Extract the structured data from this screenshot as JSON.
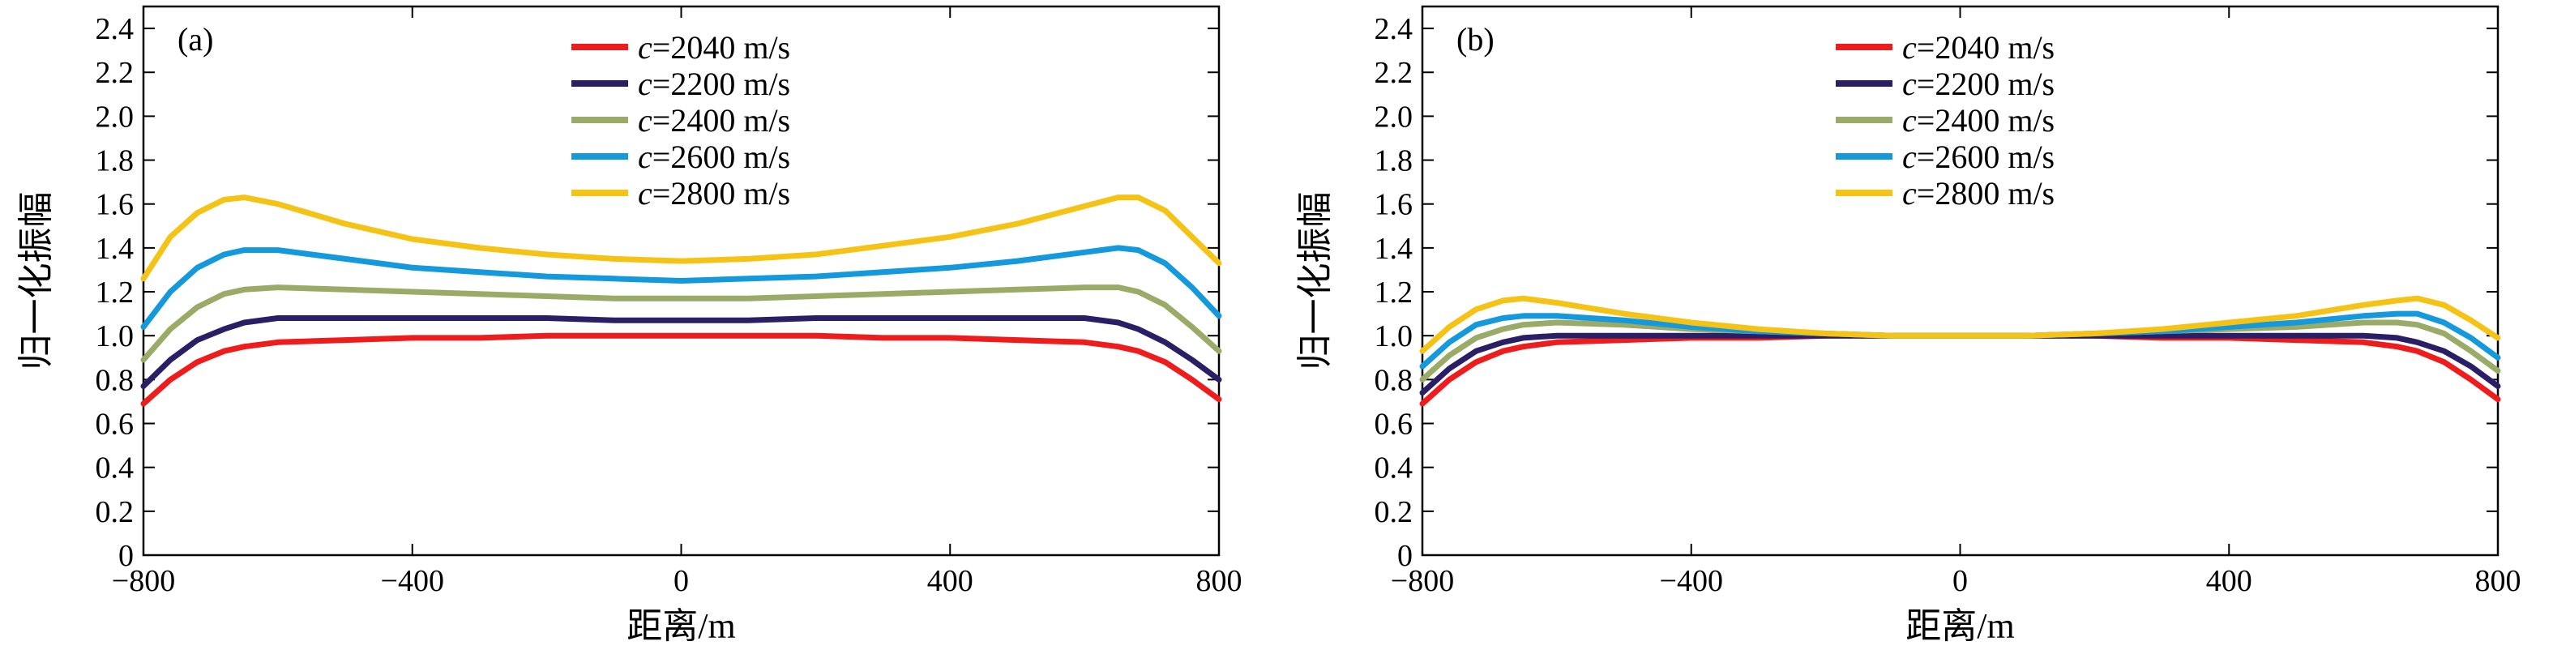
{
  "chart_data": [
    {
      "type": "line",
      "panel_label": "(a)",
      "xlabel": "距离/m",
      "ylabel": "归一化振幅",
      "xlim": [
        -800,
        800
      ],
      "ylim": [
        0,
        2.5
      ],
      "xticks": [
        "−800",
        "−400",
        "0",
        "400",
        "800"
      ],
      "yticks": [
        "0",
        "0.2",
        "0.4",
        "0.6",
        "0.8",
        "1.0",
        "1.2",
        "1.4",
        "1.6",
        "1.8",
        "2.0",
        "2.2",
        "2.4"
      ],
      "legend_position": "top-center",
      "grid": false,
      "x": [
        -800,
        -760,
        -720,
        -680,
        -650,
        -600,
        -500,
        -400,
        -300,
        -200,
        -100,
        0,
        100,
        200,
        300,
        400,
        500,
        600,
        650,
        680,
        720,
        760,
        800
      ],
      "series": [
        {
          "name_italic": "c",
          "name_rest": "=2040 m/s",
          "color": "#ee1c1c",
          "values": [
            0.69,
            0.8,
            0.88,
            0.93,
            0.95,
            0.97,
            0.98,
            0.99,
            0.99,
            1.0,
            1.0,
            1.0,
            1.0,
            1.0,
            0.99,
            0.99,
            0.98,
            0.97,
            0.95,
            0.93,
            0.88,
            0.8,
            0.71
          ]
        },
        {
          "name_italic": "c",
          "name_rest": "=2200 m/s",
          "color": "#2a1f66",
          "values": [
            0.77,
            0.89,
            0.98,
            1.03,
            1.06,
            1.08,
            1.08,
            1.08,
            1.08,
            1.08,
            1.07,
            1.07,
            1.07,
            1.08,
            1.08,
            1.08,
            1.08,
            1.08,
            1.06,
            1.03,
            0.97,
            0.89,
            0.8
          ]
        },
        {
          "name_italic": "c",
          "name_rest": "=2400 m/s",
          "color": "#9aab68",
          "values": [
            0.89,
            1.03,
            1.13,
            1.19,
            1.21,
            1.22,
            1.21,
            1.2,
            1.19,
            1.18,
            1.17,
            1.17,
            1.17,
            1.18,
            1.19,
            1.2,
            1.21,
            1.22,
            1.22,
            1.2,
            1.14,
            1.04,
            0.93
          ]
        },
        {
          "name_italic": "c",
          "name_rest": "=2600 m/s",
          "color": "#1499dc",
          "values": [
            1.04,
            1.2,
            1.31,
            1.37,
            1.39,
            1.39,
            1.35,
            1.31,
            1.29,
            1.27,
            1.26,
            1.25,
            1.26,
            1.27,
            1.29,
            1.31,
            1.34,
            1.38,
            1.4,
            1.39,
            1.33,
            1.22,
            1.09
          ]
        },
        {
          "name_italic": "c",
          "name_rest": "=2800 m/s",
          "color": "#f4c316",
          "values": [
            1.26,
            1.45,
            1.56,
            1.62,
            1.63,
            1.6,
            1.51,
            1.44,
            1.4,
            1.37,
            1.35,
            1.34,
            1.35,
            1.37,
            1.41,
            1.45,
            1.51,
            1.59,
            1.63,
            1.63,
            1.57,
            1.45,
            1.33
          ]
        }
      ]
    },
    {
      "type": "line",
      "panel_label": "(b)",
      "xlabel": "距离/m",
      "ylabel": "归一化振幅",
      "xlim": [
        -800,
        800
      ],
      "ylim": [
        0,
        2.5
      ],
      "xticks": [
        "−800",
        "−400",
        "0",
        "400",
        "800"
      ],
      "yticks": [
        "0",
        "0.2",
        "0.4",
        "0.6",
        "0.8",
        "1.0",
        "1.2",
        "1.4",
        "1.6",
        "1.8",
        "2.0",
        "2.2",
        "2.4"
      ],
      "legend_position": "top-center",
      "grid": false,
      "x": [
        -800,
        -760,
        -720,
        -680,
        -650,
        -600,
        -500,
        -400,
        -300,
        -200,
        -100,
        0,
        100,
        200,
        300,
        400,
        500,
        600,
        650,
        680,
        720,
        760,
        800
      ],
      "series": [
        {
          "name_italic": "c",
          "name_rest": "=2040 m/s",
          "color": "#ee1c1c",
          "values": [
            0.69,
            0.8,
            0.88,
            0.93,
            0.95,
            0.97,
            0.98,
            0.99,
            0.99,
            1.0,
            1.0,
            1.0,
            1.0,
            1.0,
            0.99,
            0.99,
            0.98,
            0.97,
            0.95,
            0.93,
            0.88,
            0.8,
            0.71
          ]
        },
        {
          "name_italic": "c",
          "name_rest": "=2200 m/s",
          "color": "#2a1f66",
          "values": [
            0.74,
            0.85,
            0.93,
            0.97,
            0.99,
            1.0,
            1.0,
            1.0,
            1.0,
            1.0,
            1.0,
            1.0,
            1.0,
            1.0,
            1.0,
            1.0,
            1.0,
            1.0,
            0.99,
            0.97,
            0.93,
            0.86,
            0.77
          ]
        },
        {
          "name_italic": "c",
          "name_rest": "=2400 m/s",
          "color": "#9aab68",
          "values": [
            0.8,
            0.91,
            0.99,
            1.03,
            1.05,
            1.06,
            1.05,
            1.03,
            1.02,
            1.01,
            1.0,
            1.0,
            1.0,
            1.01,
            1.02,
            1.03,
            1.04,
            1.06,
            1.06,
            1.05,
            1.01,
            0.93,
            0.84
          ]
        },
        {
          "name_italic": "c",
          "name_rest": "=2600 m/s",
          "color": "#1499dc",
          "values": [
            0.86,
            0.97,
            1.05,
            1.08,
            1.09,
            1.09,
            1.07,
            1.04,
            1.02,
            1.01,
            1.0,
            1.0,
            1.0,
            1.01,
            1.02,
            1.04,
            1.06,
            1.09,
            1.1,
            1.1,
            1.06,
            0.99,
            0.9
          ]
        },
        {
          "name_italic": "c",
          "name_rest": "=2800 m/s",
          "color": "#f4c316",
          "values": [
            0.93,
            1.04,
            1.12,
            1.16,
            1.17,
            1.15,
            1.1,
            1.06,
            1.03,
            1.01,
            1.0,
            1.0,
            1.0,
            1.01,
            1.03,
            1.06,
            1.09,
            1.14,
            1.16,
            1.17,
            1.14,
            1.07,
            0.99
          ]
        }
      ]
    }
  ]
}
